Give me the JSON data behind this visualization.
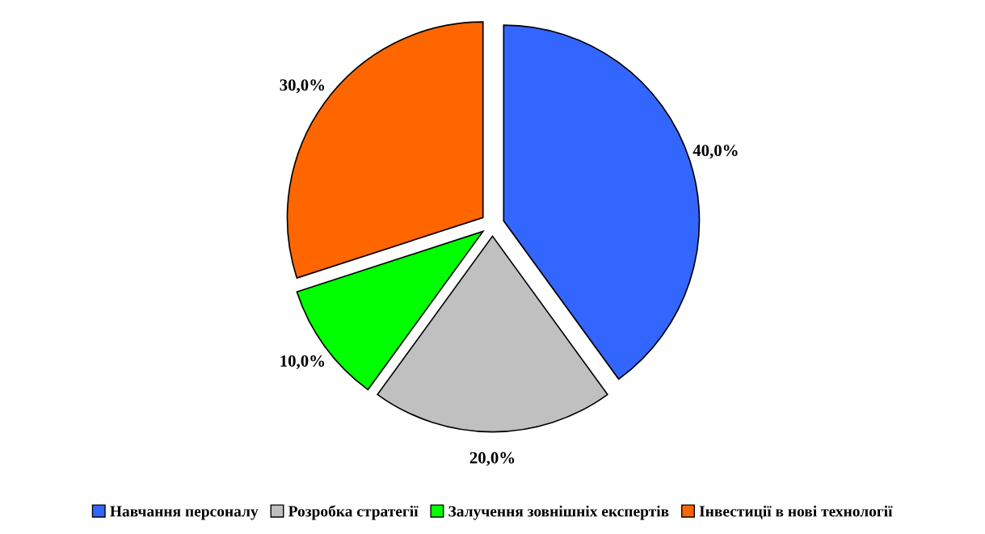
{
  "chart_data": {
    "type": "pie",
    "categories": [
      "Навчання персоналу",
      "Розробка стратегії",
      "Залучення зовнішніх експертів",
      "Інвестиції в нові технології"
    ],
    "values": [
      40,
      20,
      10,
      30
    ],
    "colors": [
      "#3366ff",
      "#c0c0c0",
      "#00ff00",
      "#ff6600"
    ],
    "value_labels": [
      "40,0%",
      "20,0%",
      "10,0%",
      "30,0%"
    ],
    "legend": "bottom"
  }
}
